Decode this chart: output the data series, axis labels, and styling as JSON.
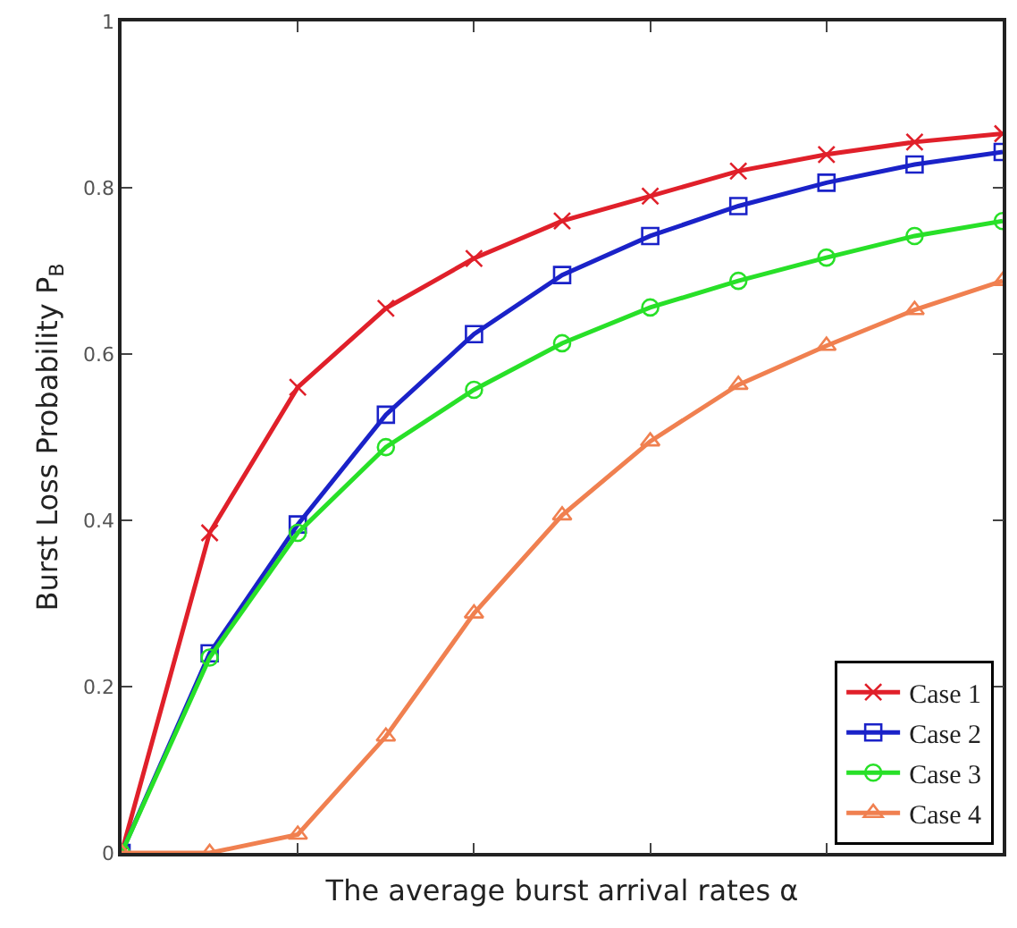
{
  "chart_data": {
    "type": "line",
    "xlabel": "The average burst arrival rates α",
    "ylabel": "Burst Loss Probability P$_{B}$",
    "categories": [
      null,
      null,
      null,
      null,
      null,
      null,
      null,
      null,
      null,
      null,
      null
    ],
    "ylim": [
      0,
      1
    ],
    "yticks": [
      0,
      0.2,
      0.4,
      0.6,
      0.8,
      1
    ],
    "grid": false,
    "legend": "bottom right",
    "line_style": "solid",
    "series": [
      {
        "name": "Case 1",
        "color": "#e0202a",
        "marker": "cross",
        "values": [
          0,
          0.385,
          0.56,
          0.655,
          0.715,
          0.76,
          0.79,
          0.82,
          0.84,
          0.855,
          0.865
        ]
      },
      {
        "name": "Case 2",
        "color": "#1a22c8",
        "marker": "square",
        "values": [
          0,
          0.24,
          0.395,
          0.527,
          0.624,
          0.695,
          0.742,
          0.778,
          0.806,
          0.828,
          0.843
        ]
      },
      {
        "name": "Case 3",
        "color": "#28e028",
        "marker": "circle",
        "values": [
          0,
          0.235,
          0.385,
          0.488,
          0.557,
          0.613,
          0.656,
          0.688,
          0.716,
          0.742,
          0.76
        ]
      },
      {
        "name": "Case 4",
        "color": "#f08050",
        "marker": "triangle",
        "values": [
          0,
          0,
          0.022,
          0.14,
          0.288,
          0.406,
          0.495,
          0.563,
          0.61,
          0.653,
          0.688
        ]
      }
    ]
  }
}
